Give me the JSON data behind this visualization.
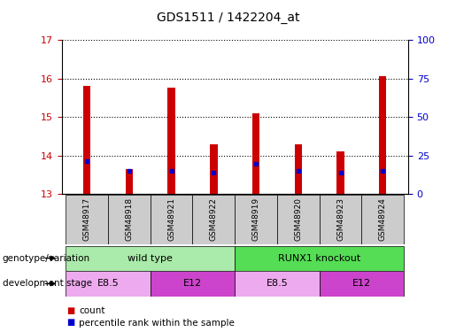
{
  "title": "GDS1511 / 1422204_at",
  "samples": [
    "GSM48917",
    "GSM48918",
    "GSM48921",
    "GSM48922",
    "GSM48919",
    "GSM48920",
    "GSM48923",
    "GSM48924"
  ],
  "count_values": [
    15.8,
    13.65,
    15.75,
    14.3,
    15.1,
    14.3,
    14.1,
    16.05
  ],
  "percentile_values": [
    13.85,
    13.6,
    13.6,
    13.55,
    13.8,
    13.6,
    13.55,
    13.6
  ],
  "ylim_left": [
    13,
    17
  ],
  "ylim_right": [
    0,
    100
  ],
  "yticks_left": [
    13,
    14,
    15,
    16,
    17
  ],
  "yticks_right": [
    0,
    25,
    50,
    75,
    100
  ],
  "bar_color": "#cc0000",
  "percentile_color": "#0000cc",
  "bar_width": 0.5,
  "groups": [
    {
      "label": "wild type",
      "start": 0,
      "end": 4,
      "color": "#aaeaaa"
    },
    {
      "label": "RUNX1 knockout",
      "start": 4,
      "end": 8,
      "color": "#55dd55"
    }
  ],
  "stages": [
    {
      "label": "E8.5",
      "start": 0,
      "end": 2,
      "color": "#eeaaee"
    },
    {
      "label": "E12",
      "start": 2,
      "end": 4,
      "color": "#cc44cc"
    },
    {
      "label": "E8.5",
      "start": 4,
      "end": 6,
      "color": "#eeaaee"
    },
    {
      "label": "E12",
      "start": 6,
      "end": 8,
      "color": "#cc44cc"
    }
  ],
  "row_labels": [
    "genotype/variation",
    "development stage"
  ],
  "legend_items": [
    {
      "label": "count",
      "color": "#cc0000"
    },
    {
      "label": "percentile rank within the sample",
      "color": "#0000cc"
    }
  ],
  "tick_label_color_left": "#cc0000",
  "tick_label_color_right": "#0000cc",
  "sample_box_color": "#cccccc",
  "title_fontsize": 10,
  "row_label_fontsize": 7.5,
  "sample_label_fontsize": 6.5,
  "group_label_fontsize": 8,
  "legend_fontsize": 7.5
}
